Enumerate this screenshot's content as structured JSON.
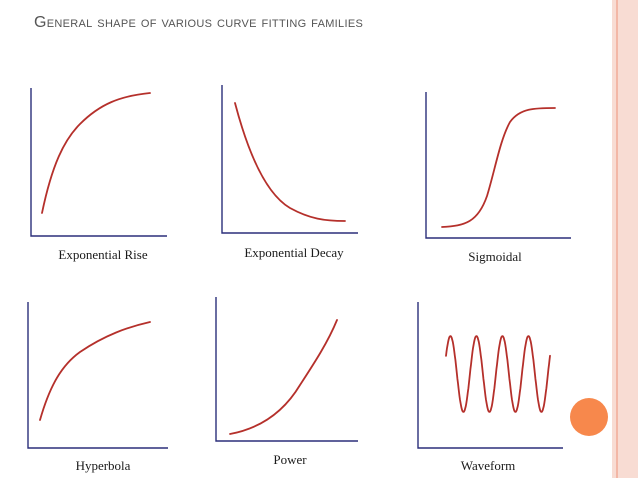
{
  "slide": {
    "title": "General shape of various curve fitting families",
    "colors": {
      "axis": "#2b2f7a",
      "curve": "#b5302b",
      "accent_band": "#f8dcd3",
      "accent_dot": "#f7884c"
    }
  },
  "panels": [
    {
      "id": "exp-rise",
      "caption": "Exponential Rise"
    },
    {
      "id": "exp-decay",
      "caption": "Exponential Decay"
    },
    {
      "id": "sigmoidal",
      "caption": "Sigmoidal"
    },
    {
      "id": "hyperbola",
      "caption": "Hyperbola"
    },
    {
      "id": "power",
      "caption": "Power"
    },
    {
      "id": "waveform",
      "caption": "Waveform"
    }
  ]
}
